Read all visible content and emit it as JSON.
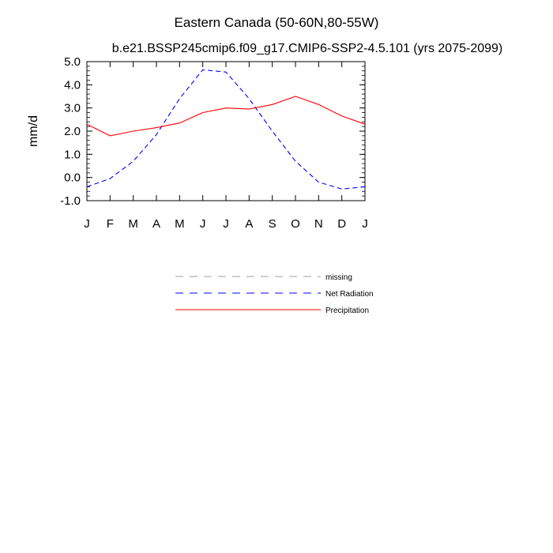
{
  "chart_data": {
    "type": "line",
    "title": "Eastern Canada (50-60N,80-55W)",
    "subtitle": "b.e21.BSSP245cmip6.f09_g17.CMIP6-SSP2-4.5.101 (yrs 2075-2099)",
    "xlabel": "",
    "ylabel": "mm/d",
    "ylim": [
      -1.0,
      5.0
    ],
    "yticks": [
      "5.0",
      "4.0",
      "3.0",
      "2.0",
      "1.0",
      "0.0",
      "-1.0"
    ],
    "ytick_values": [
      5.0,
      4.0,
      3.0,
      2.0,
      1.0,
      0.0,
      -1.0
    ],
    "categories": [
      "J",
      "F",
      "M",
      "A",
      "M",
      "J",
      "J",
      "A",
      "S",
      "O",
      "N",
      "D",
      "J"
    ],
    "series": [
      {
        "name": "Net Radiation",
        "color": "#0000ff",
        "style": "dashed",
        "values": [
          -0.4,
          -0.05,
          0.7,
          1.85,
          3.4,
          4.65,
          4.55,
          3.4,
          2.0,
          0.7,
          -0.2,
          -0.5,
          -0.4
        ]
      },
      {
        "name": "Precipitation",
        "color": "#ff0000",
        "style": "solid",
        "values": [
          2.3,
          1.8,
          2.0,
          2.15,
          2.35,
          2.8,
          3.0,
          2.95,
          3.15,
          3.5,
          3.15,
          2.65,
          2.3
        ]
      }
    ],
    "legend": [
      {
        "label": "missing",
        "color": "#a0a0a0",
        "style": "dashed"
      },
      {
        "label": "Net Radiation",
        "color": "#0000ff",
        "style": "dashed"
      },
      {
        "label": "Precipitation",
        "color": "#ff0000",
        "style": "solid"
      }
    ],
    "legend_position": "bottom-center"
  }
}
